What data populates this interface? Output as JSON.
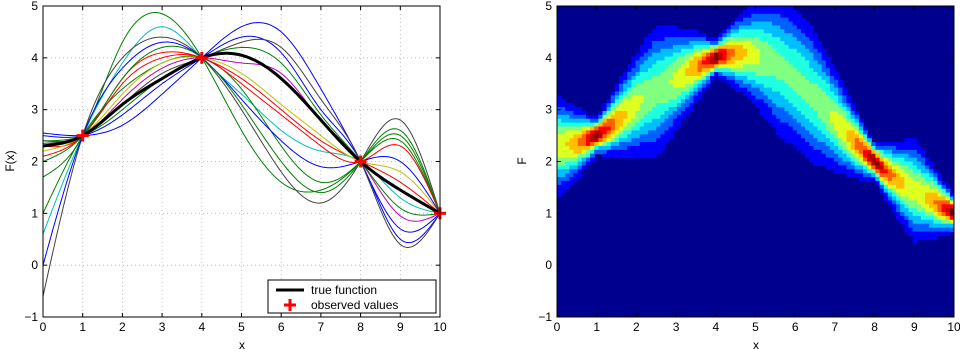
{
  "chart_data": [
    {
      "type": "line",
      "xlabel": "x",
      "ylabel": "F(x)",
      "xlim": [
        0,
        10
      ],
      "ylim": [
        -1,
        5
      ],
      "xticks": [
        "0",
        "1",
        "2",
        "3",
        "4",
        "5",
        "6",
        "7",
        "8",
        "9",
        "10"
      ],
      "yticks": [
        "−1",
        "0",
        "1",
        "2",
        "3",
        "4",
        "5"
      ],
      "grid": true,
      "legend": {
        "placement": "bottom-right",
        "entries": [
          "true function",
          "observed values"
        ]
      },
      "observed": {
        "x": [
          1,
          4,
          8,
          10
        ],
        "y": [
          2.5,
          4.0,
          2.0,
          1.0
        ],
        "color": "#ff0000"
      },
      "true_function": {
        "x": [
          0,
          1,
          2,
          3,
          4,
          5,
          6,
          7,
          8,
          9,
          10
        ],
        "y": [
          2.3,
          2.5,
          3.1,
          3.6,
          4.0,
          4.05,
          3.6,
          2.8,
          2.0,
          1.45,
          1.0
        ],
        "color": "#000000"
      },
      "sample_colors": [
        "#0000ff",
        "#008000",
        "#ff0000",
        "#00bfbf",
        "#bf00bf",
        "#bfbf00",
        "#404040"
      ],
      "samples": [
        {
          "color": "#008000",
          "y": [
            1.7,
            2.5,
            4.3,
            4.85,
            4.0,
            2.6,
            1.6,
            1.45,
            2.0,
            2.5,
            1.0
          ]
        },
        {
          "color": "#0000ff",
          "y": [
            2.55,
            2.5,
            2.7,
            3.3,
            4.0,
            4.6,
            4.5,
            3.4,
            2.0,
            0.7,
            1.0
          ]
        },
        {
          "color": "#ff0000",
          "y": [
            2.3,
            2.5,
            3.6,
            4.1,
            4.0,
            3.6,
            3.0,
            2.4,
            2.0,
            1.6,
            1.0
          ]
        },
        {
          "color": "#00bfbf",
          "y": [
            0.6,
            2.5,
            3.9,
            4.6,
            4.0,
            3.3,
            2.6,
            2.2,
            2.0,
            1.3,
            1.0
          ]
        },
        {
          "color": "#bf00bf",
          "y": [
            2.4,
            2.5,
            3.2,
            3.8,
            4.0,
            3.9,
            3.7,
            2.8,
            2.0,
            0.95,
            1.0
          ]
        },
        {
          "color": "#404040",
          "y": [
            -0.6,
            2.5,
            4.0,
            4.4,
            4.0,
            3.0,
            1.8,
            1.2,
            2.0,
            2.8,
            1.0
          ]
        },
        {
          "color": "#008000",
          "y": [
            1.0,
            2.5,
            3.4,
            3.9,
            4.0,
            3.4,
            2.3,
            1.6,
            2.0,
            2.4,
            1.0
          ]
        },
        {
          "color": "#0000ff",
          "y": [
            2.5,
            2.5,
            2.9,
            3.5,
            4.0,
            4.4,
            4.1,
            3.0,
            2.0,
            0.5,
            1.0
          ]
        },
        {
          "color": "#bfbf00",
          "y": [
            2.2,
            2.5,
            3.3,
            3.9,
            4.0,
            3.7,
            3.1,
            2.5,
            2.0,
            1.8,
            1.0
          ]
        },
        {
          "color": "#008000",
          "y": [
            2.4,
            2.5,
            3.0,
            3.6,
            4.0,
            4.2,
            3.9,
            2.9,
            2.0,
            1.1,
            1.0
          ]
        },
        {
          "color": "#ff0000",
          "y": [
            2.1,
            2.5,
            3.5,
            4.0,
            4.0,
            3.5,
            2.9,
            2.3,
            2.0,
            2.3,
            1.0
          ]
        },
        {
          "color": "#0000ff",
          "y": [
            0.0,
            2.5,
            3.8,
            4.3,
            4.0,
            3.2,
            2.4,
            1.9,
            2.0,
            2.0,
            1.0
          ]
        },
        {
          "color": "#404040",
          "y": [
            2.35,
            2.5,
            3.1,
            3.7,
            4.0,
            4.3,
            4.2,
            3.2,
            2.0,
            0.4,
            1.0
          ]
        },
        {
          "color": "#008000",
          "y": [
            2.0,
            2.5,
            3.6,
            4.2,
            4.0,
            3.1,
            2.0,
            1.4,
            2.0,
            2.6,
            1.0
          ]
        }
      ]
    },
    {
      "type": "heatmap",
      "xlabel": "x",
      "ylabel": "F",
      "xlim": [
        0,
        10
      ],
      "ylim": [
        -1,
        5
      ],
      "xticks": [
        "0",
        "1",
        "2",
        "3",
        "4",
        "5",
        "6",
        "7",
        "8",
        "9",
        "10"
      ],
      "yticks": [
        "−1",
        "0",
        "1",
        "2",
        "3",
        "4",
        "5"
      ],
      "grid": false,
      "colormap": [
        "#00008f",
        "#0000ff",
        "#0060ff",
        "#00bfff",
        "#20ffdf",
        "#80ff80",
        "#dfff20",
        "#ffbf00",
        "#ff6000",
        "#ff0000",
        "#bf0000",
        "#800000"
      ],
      "peaks": [
        {
          "x": 1,
          "y": 2.5
        },
        {
          "x": 4,
          "y": 4.0
        },
        {
          "x": 8,
          "y": 2.0
        },
        {
          "x": 10,
          "y": 1.0
        }
      ]
    }
  ]
}
